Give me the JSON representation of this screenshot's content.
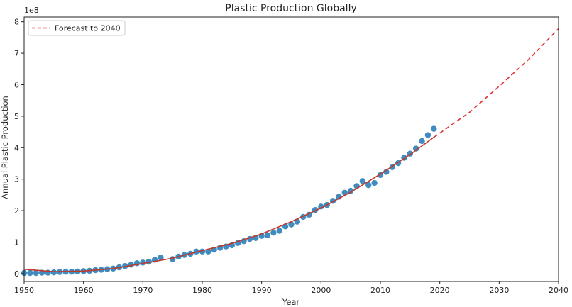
{
  "chart_data": {
    "type": "scatter",
    "title": "Plastic Production Globally",
    "xlabel": "Year",
    "ylabel": "Annual Plastic Production",
    "y_offset_text": "1e8",
    "xlim": [
      1950,
      2040
    ],
    "ylim": [
      -0.25,
      8.15
    ],
    "y_scale_factor": 100000000,
    "x_ticks": [
      1950,
      1960,
      1970,
      1980,
      1990,
      2000,
      2010,
      2020,
      2030,
      2040
    ],
    "y_ticks": [
      0,
      1,
      2,
      3,
      4,
      5,
      6,
      7,
      8
    ],
    "grid": false,
    "legend_position": "top-left",
    "series": [
      {
        "kind": "scatter",
        "color": "#1f77b4",
        "x": [
          1950,
          1951,
          1952,
          1953,
          1954,
          1955,
          1956,
          1957,
          1958,
          1959,
          1960,
          1961,
          1962,
          1963,
          1964,
          1965,
          1966,
          1967,
          1968,
          1969,
          1970,
          1971,
          1972,
          1973,
          1975,
          1976,
          1977,
          1978,
          1979,
          1980,
          1981,
          1982,
          1983,
          1984,
          1985,
          1986,
          1987,
          1988,
          1989,
          1990,
          1991,
          1992,
          1993,
          1994,
          1995,
          1996,
          1997,
          1998,
          1999,
          2000,
          2001,
          2002,
          2003,
          2004,
          2005,
          2006,
          2007,
          2008,
          2009,
          2010,
          2011,
          2012,
          2013,
          2014,
          2015,
          2016,
          2017,
          2018,
          2019
        ],
        "y": [
          0.02,
          0.02,
          0.02,
          0.03,
          0.03,
          0.04,
          0.05,
          0.06,
          0.06,
          0.07,
          0.08,
          0.09,
          0.11,
          0.12,
          0.14,
          0.16,
          0.2,
          0.24,
          0.28,
          0.33,
          0.35,
          0.38,
          0.44,
          0.51,
          0.46,
          0.54,
          0.59,
          0.63,
          0.7,
          0.7,
          0.7,
          0.76,
          0.82,
          0.86,
          0.9,
          0.97,
          1.03,
          1.1,
          1.13,
          1.2,
          1.22,
          1.3,
          1.36,
          1.5,
          1.56,
          1.65,
          1.8,
          1.87,
          2.02,
          2.13,
          2.18,
          2.31,
          2.44,
          2.57,
          2.63,
          2.78,
          2.94,
          2.81,
          2.88,
          3.13,
          3.23,
          3.38,
          3.51,
          3.68,
          3.81,
          3.97,
          4.21,
          4.4,
          4.6
        ]
      },
      {
        "kind": "line",
        "color": "#c0392b",
        "style": "solid",
        "x": [
          1950,
          1955,
          1960,
          1965,
          1970,
          1975,
          1980,
          1985,
          1990,
          1995,
          2000,
          2005,
          2010,
          2015,
          2019
        ],
        "y": [
          0.14,
          0.06,
          0.08,
          0.16,
          0.32,
          0.49,
          0.73,
          0.96,
          1.26,
          1.65,
          2.08,
          2.59,
          3.16,
          3.78,
          4.33
        ]
      },
      {
        "kind": "line",
        "name": "Forecast to 2040",
        "color": "#e03131",
        "style": "dashed",
        "x": [
          2019,
          2025,
          2030,
          2035,
          2040
        ],
        "y": [
          4.33,
          5.12,
          5.95,
          6.81,
          7.78
        ]
      }
    ]
  }
}
